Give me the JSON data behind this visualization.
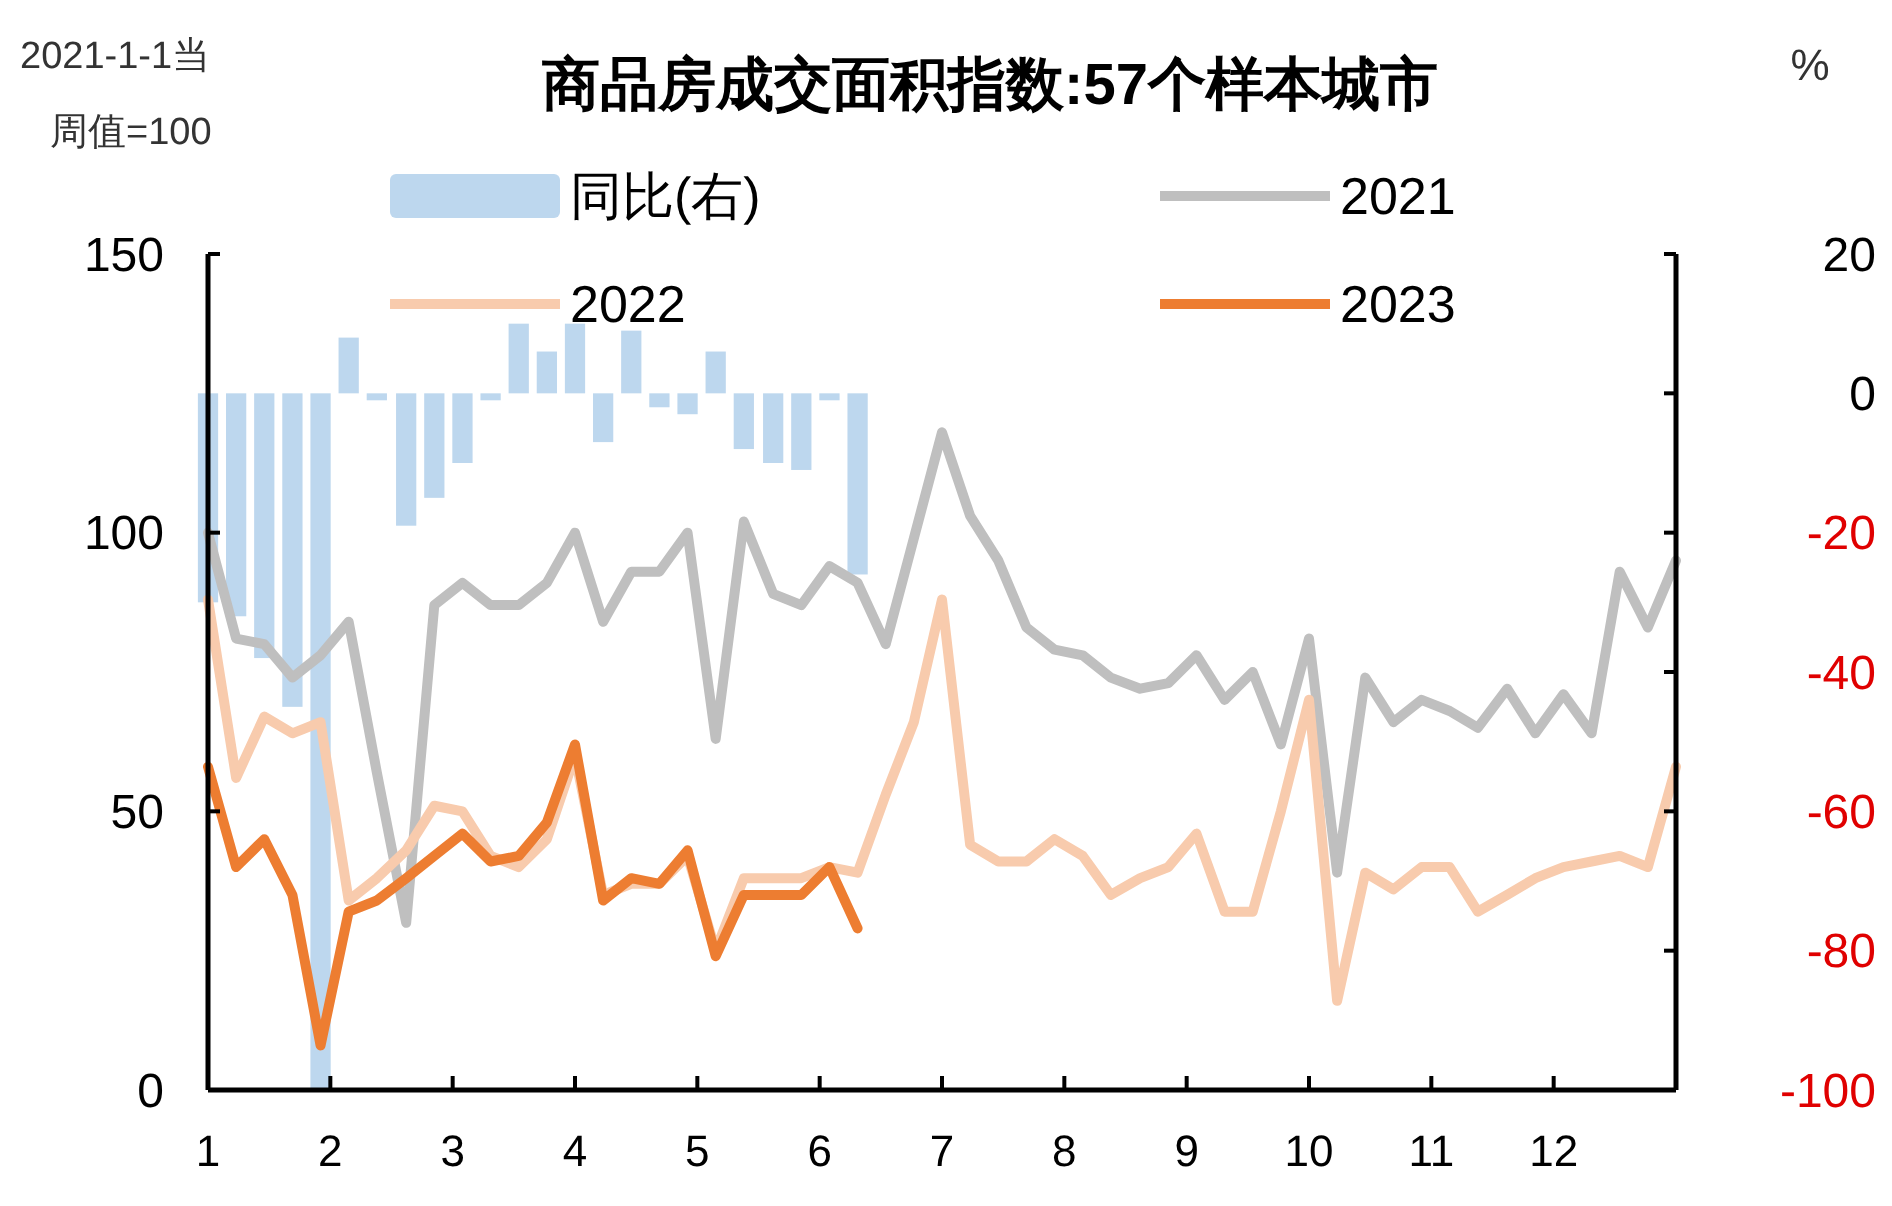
{
  "chart_data": {
    "type": "line",
    "title": "商品房成交面积指数:57个样本城市",
    "annotations": [
      "2021-1-1当周值=100",
      "%"
    ],
    "x": [
      1,
      1.23,
      1.46,
      1.69,
      1.92,
      2.15,
      2.38,
      2.62,
      2.85,
      3.08,
      3.31,
      3.54,
      3.77,
      4,
      4.23,
      4.46,
      4.69,
      4.92,
      5.15,
      5.38,
      5.62,
      5.85,
      6.08,
      6.31,
      6.54,
      6.77,
      7,
      7.23,
      7.46,
      7.69,
      7.92,
      8.15,
      8.38,
      8.62,
      8.85,
      9.08,
      9.31,
      9.54,
      9.77,
      10,
      10.23,
      10.46,
      10.69,
      10.92,
      11.15,
      11.38,
      11.62,
      11.85,
      12.08,
      12.31,
      12.54,
      12.77,
      13
    ],
    "xlim": [
      1,
      13
    ],
    "xticks": [
      1,
      2,
      3,
      4,
      5,
      6,
      7,
      8,
      9,
      10,
      11,
      12
    ],
    "ylim": [
      0,
      150
    ],
    "yticks": [
      0,
      50,
      100,
      150
    ],
    "y2lim": [
      -100,
      20
    ],
    "y2ticks": [
      -100,
      -80,
      -60,
      -40,
      -20,
      0,
      20
    ],
    "legend": "top",
    "grid": false,
    "series": [
      {
        "name": "同比(右)",
        "type": "bar",
        "axis": "y2",
        "color": "#bdd7ee",
        "x": [
          1,
          1.23,
          1.46,
          1.69,
          1.92,
          2.15,
          2.38,
          2.62,
          2.85,
          3.08,
          3.31,
          3.54,
          3.77,
          4,
          4.23,
          4.46,
          4.69,
          4.92,
          5.15,
          5.38,
          5.62,
          5.85,
          6.08,
          6.31
        ],
        "values": [
          -30,
          -32,
          -38,
          -45,
          -100,
          8,
          -1,
          -19,
          -15,
          -10,
          -1,
          10,
          6,
          10,
          -7,
          9,
          -2,
          -3,
          6,
          -8,
          -10,
          -11,
          -1,
          -26
        ]
      },
      {
        "name": "2021",
        "color": "#bfbfbf",
        "values": [
          100,
          81,
          80,
          74,
          78,
          84,
          57,
          30,
          87,
          91,
          87,
          87,
          91,
          100,
          84,
          93,
          93,
          100,
          63,
          102,
          89,
          87,
          94,
          91,
          80,
          99,
          118,
          103,
          95,
          83,
          79,
          78,
          74,
          72,
          73,
          78,
          70,
          75,
          62,
          81,
          39,
          74,
          66,
          70,
          68,
          65,
          72,
          64,
          71,
          64,
          93,
          83,
          95
        ]
      },
      {
        "name": "2022",
        "color": "#f8cbad",
        "values": [
          88,
          56,
          67,
          64,
          66,
          34,
          38,
          43,
          51,
          50,
          42,
          40,
          45,
          60,
          35,
          37,
          37,
          42,
          25,
          38,
          38,
          38,
          40,
          39,
          53,
          66,
          88,
          44,
          41,
          41,
          45,
          42,
          35,
          38,
          40,
          46,
          32,
          32,
          50,
          70,
          16,
          39,
          36,
          40,
          40,
          32,
          35,
          38,
          40,
          41,
          42,
          40,
          58
        ]
      },
      {
        "name": "2023",
        "color": "#ed7d31",
        "x": [
          1,
          1.23,
          1.46,
          1.69,
          1.92,
          2.15,
          2.38,
          2.62,
          2.85,
          3.08,
          3.31,
          3.54,
          3.77,
          4,
          4.23,
          4.46,
          4.69,
          4.92,
          5.15,
          5.38,
          5.62,
          5.85,
          6.08,
          6.31
        ],
        "values": [
          58,
          40,
          45,
          35,
          8,
          32,
          34,
          38,
          42,
          46,
          41,
          42,
          48,
          62,
          34,
          38,
          37,
          43,
          24,
          35,
          35,
          35,
          40,
          29
        ]
      }
    ]
  }
}
